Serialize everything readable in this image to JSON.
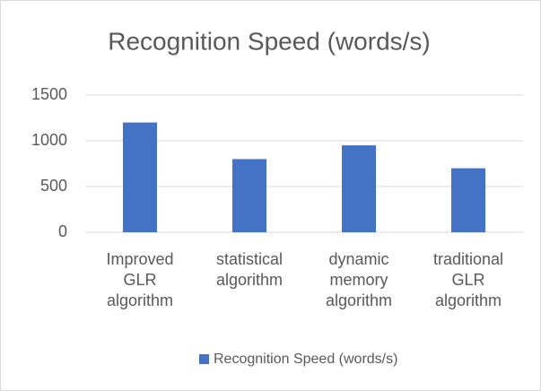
{
  "chart_data": {
    "type": "bar",
    "title": "Recognition Speed (words/s)",
    "categories": [
      "Improved GLR algorithm",
      "statistical algorithm",
      "dynamic memory algorithm",
      "traditional GLR algorithm"
    ],
    "series": [
      {
        "name": "Recognition Speed (words/s)",
        "color": "#4472c4",
        "values": [
          1200,
          800,
          950,
          700
        ]
      }
    ],
    "ylim": [
      0,
      1500
    ],
    "yticks": [
      0,
      500,
      1000,
      1500
    ],
    "grid": true,
    "legend": "bottom"
  }
}
